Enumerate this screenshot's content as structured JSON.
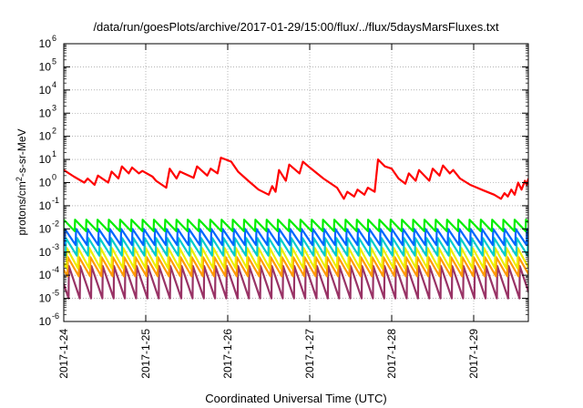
{
  "chart_data": {
    "type": "line",
    "title": "/data/run/goesPlots/archive/2017-01-29/15:00/flux/../flux/5daysMarsFluxes.txt",
    "xlabel": "Coordinated Universal Time (UTC)",
    "ylabel": {
      "prefix": "protons/cm",
      "sup": "2",
      "suffix": "-s-sr-MeV"
    },
    "x_axis": {
      "unit": "day",
      "range": [
        "2017-01-24T00:00",
        "2017-01-29T16:00"
      ],
      "tick_labels": [
        "2017-1-24",
        "2017-1-25",
        "2017-1-26",
        "2017-1-27",
        "2017-1-28",
        "2017-1-29"
      ]
    },
    "y_axis": {
      "scale": "log",
      "range": [
        1e-06,
        1000000.0
      ],
      "tick_exponents": [
        -6,
        -5,
        -4,
        -3,
        -2,
        -1,
        0,
        1,
        2,
        3,
        4,
        5,
        6
      ]
    },
    "grid": true,
    "series": [
      {
        "color": "#ff0000",
        "x": [
          "2017-01-24T00:00",
          "2017-01-24T03:00",
          "2017-01-24T06:00",
          "2017-01-24T07:00",
          "2017-01-24T09:00",
          "2017-01-24T10:00",
          "2017-01-24T13:00",
          "2017-01-24T14:00",
          "2017-01-24T16:00",
          "2017-01-24T17:00",
          "2017-01-24T19:00",
          "2017-01-24T20:00",
          "2017-01-24T22:00",
          "2017-01-24T23:00",
          "2017-01-25T02:00",
          "2017-01-25T03:00",
          "2017-01-25T06:00",
          "2017-01-25T07:00",
          "2017-01-25T09:00",
          "2017-01-25T10:00",
          "2017-01-25T14:00",
          "2017-01-25T15:00",
          "2017-01-25T18:00",
          "2017-01-25T19:00",
          "2017-01-25T21:00",
          "2017-01-25T22:00",
          "2017-01-26T01:00",
          "2017-01-26T03:00",
          "2017-01-26T06:00",
          "2017-01-26T09:00",
          "2017-01-26T12:00",
          "2017-01-26T13:00",
          "2017-01-26T14:00",
          "2017-01-26T15:00",
          "2017-01-26T17:00",
          "2017-01-26T18:00",
          "2017-01-26T21:00",
          "2017-01-26T22:00",
          "2017-01-27T00:00",
          "2017-01-27T04:00",
          "2017-01-27T08:00",
          "2017-01-27T10:00",
          "2017-01-27T11:00",
          "2017-01-27T13:00",
          "2017-01-27T14:00",
          "2017-01-27T16:00",
          "2017-01-27T17:00",
          "2017-01-27T19:00",
          "2017-01-27T20:00",
          "2017-01-27T22:00",
          "2017-01-28T00:00",
          "2017-01-28T02:00",
          "2017-01-28T04:00",
          "2017-01-28T05:00",
          "2017-01-28T07:00",
          "2017-01-28T08:00",
          "2017-01-28T11:00",
          "2017-01-28T12:00",
          "2017-01-28T14:00",
          "2017-01-28T15:00",
          "2017-01-28T17:00",
          "2017-01-28T18:00",
          "2017-01-28T20:00",
          "2017-01-28T23:00",
          "2017-01-29T03:00",
          "2017-01-29T06:00",
          "2017-01-29T08:00",
          "2017-01-29T09:00",
          "2017-01-29T10:00",
          "2017-01-29T11:00",
          "2017-01-29T12:00",
          "2017-01-29T13:00",
          "2017-01-29T14:00",
          "2017-01-29T15:00",
          "2017-01-29T15:30",
          "2017-01-29T16:00"
        ],
        "y": [
          3.5,
          1.8,
          1.0,
          1.5,
          0.8,
          2.0,
          1.0,
          3.0,
          1.5,
          5.0,
          2.5,
          4.5,
          2.5,
          3.2,
          1.8,
          1.2,
          0.6,
          4.0,
          1.5,
          3.0,
          1.6,
          5.0,
          2.0,
          4.0,
          2.5,
          12.0,
          8.0,
          3.0,
          1.2,
          0.5,
          0.3,
          0.7,
          0.4,
          3.5,
          1.2,
          6.0,
          2.5,
          8.0,
          4.5,
          1.5,
          0.6,
          0.2,
          0.4,
          0.25,
          0.5,
          0.3,
          0.6,
          0.4,
          10.0,
          5.0,
          4.0,
          1.5,
          0.9,
          2.5,
          1.2,
          3.5,
          1.2,
          4.0,
          2.0,
          5.5,
          2.5,
          3.5,
          1.5,
          0.8,
          0.45,
          0.3,
          0.2,
          0.35,
          0.25,
          0.5,
          0.3,
          1.0,
          0.5,
          1.2,
          0.8,
          1.5
        ]
      },
      {
        "color": "#00ee00",
        "high": 0.025,
        "low": 0.008,
        "period_hours": 3.3,
        "phase_hours": 0.0
      },
      {
        "color": "#0066ff",
        "high": 0.01,
        "low": 0.002,
        "period_hours": 3.3,
        "phase_hours": 0.3
      },
      {
        "color": "#00cccc",
        "high": 0.004,
        "low": 0.0007,
        "period_hours": 3.3,
        "phase_hours": 0.6
      },
      {
        "color": "#eeee00",
        "high": 0.0015,
        "low": 0.0002,
        "period_hours": 3.3,
        "phase_hours": 0.9
      },
      {
        "color": "#ff9900",
        "high": 0.0006,
        "low": 9e-05,
        "period_hours": 3.3,
        "phase_hours": 1.2
      },
      {
        "color": "#993366",
        "high": 0.00025,
        "low": 1e-05,
        "period_hours": 3.3,
        "phase_hours": 1.5
      }
    ]
  }
}
